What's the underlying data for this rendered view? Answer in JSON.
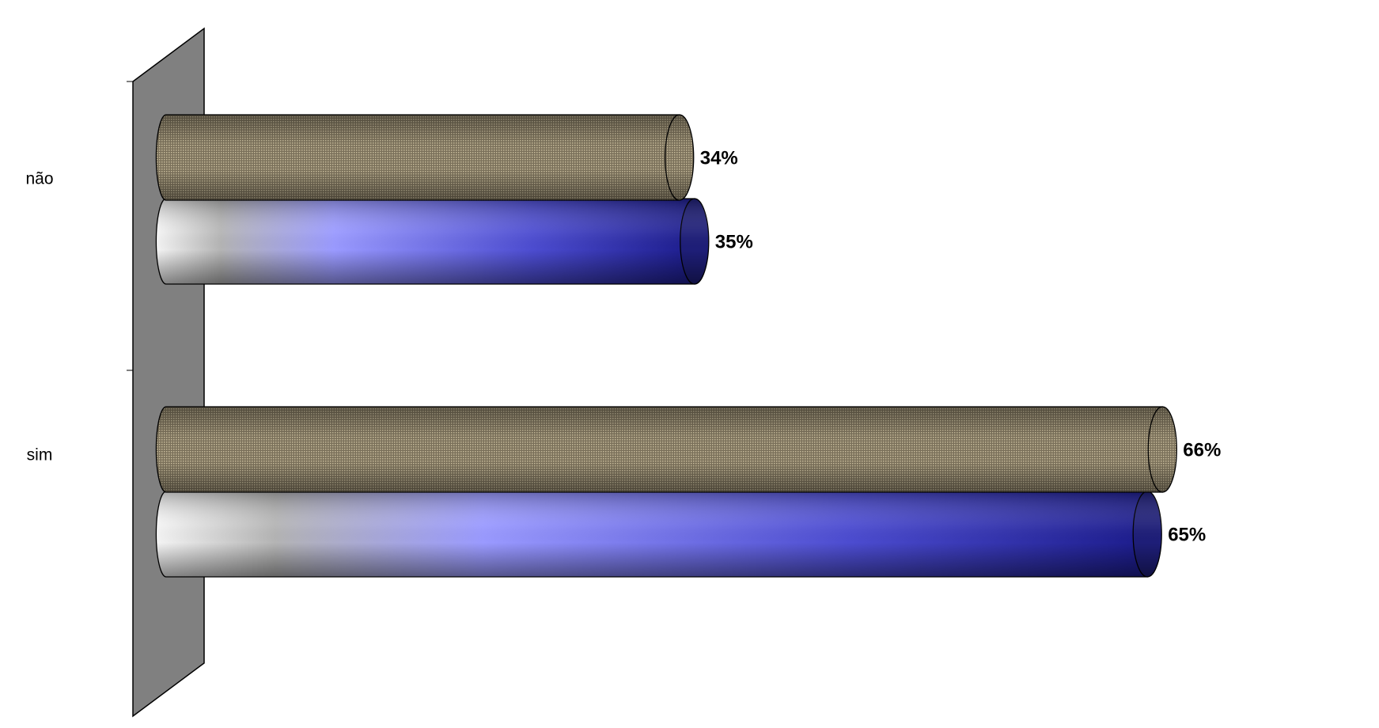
{
  "chart_data": {
    "type": "bar",
    "orientation": "horizontal",
    "style": "3d-cylinder",
    "categories": [
      "não",
      "sim"
    ],
    "series": [
      {
        "values": [
          34,
          66
        ],
        "value_labels": [
          "34%",
          "66%"
        ],
        "color": "#8a8068"
      },
      {
        "values": [
          35,
          65
        ],
        "value_labels": [
          "35%",
          "65%"
        ],
        "color": "#2a2aa8"
      }
    ],
    "xlim": [
      0,
      66
    ],
    "legend": "none",
    "grid": false,
    "wall_color": "#808080"
  }
}
